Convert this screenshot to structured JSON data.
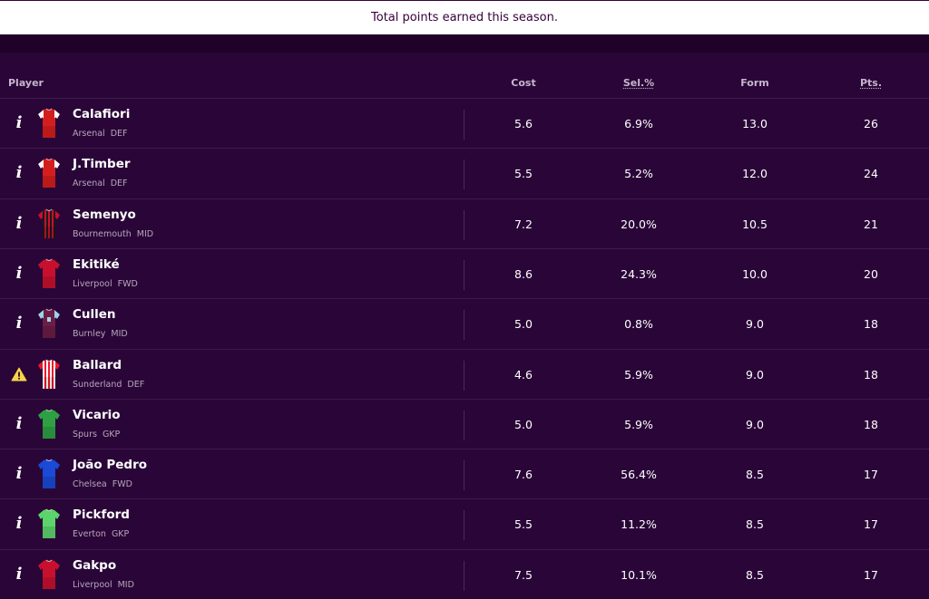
{
  "tooltip": {
    "text": "Total points earned this season."
  },
  "columns": {
    "player": "Player",
    "cost": "Cost",
    "sel": "Sel.%",
    "form": "Form",
    "pts": "Pts."
  },
  "rows": [
    {
      "name": "Calafiori",
      "team": "Arsenal",
      "position": "DEF",
      "cost": "5.6",
      "sel": "6.9%",
      "form": "13.0",
      "pts": "26",
      "status": "info",
      "kit": {
        "type": "arsenal",
        "primary": "#d41e1e",
        "sleeve": "#ffffff"
      }
    },
    {
      "name": "J.Timber",
      "team": "Arsenal",
      "position": "DEF",
      "cost": "5.5",
      "sel": "5.2%",
      "form": "12.0",
      "pts": "24",
      "status": "info",
      "kit": {
        "type": "arsenal",
        "primary": "#d41e1e",
        "sleeve": "#ffffff"
      }
    },
    {
      "name": "Semenyo",
      "team": "Bournemouth",
      "position": "MID",
      "cost": "7.2",
      "sel": "20.0%",
      "form": "10.5",
      "pts": "21",
      "status": "info",
      "kit": {
        "type": "stripes",
        "primary": "#c8102e",
        "stripe": "#1a1a1a"
      }
    },
    {
      "name": "Ekitiké",
      "team": "Liverpool",
      "position": "FWD",
      "cost": "8.6",
      "sel": "24.3%",
      "form": "10.0",
      "pts": "20",
      "status": "info",
      "kit": {
        "type": "plain",
        "primary": "#c8102e"
      }
    },
    {
      "name": "Cullen",
      "team": "Burnley",
      "position": "MID",
      "cost": "5.0",
      "sel": "0.8%",
      "form": "9.0",
      "pts": "18",
      "status": "info",
      "kit": {
        "type": "burnley",
        "primary": "#6c1d45",
        "sleeve": "#99d6ea"
      }
    },
    {
      "name": "Ballard",
      "team": "Sunderland",
      "position": "DEF",
      "cost": "4.6",
      "sel": "5.9%",
      "form": "9.0",
      "pts": "18",
      "status": "warning",
      "kit": {
        "type": "stripes",
        "primary": "#eb172b",
        "stripe": "#ffffff"
      }
    },
    {
      "name": "Vicario",
      "team": "Spurs",
      "position": "GKP",
      "cost": "5.0",
      "sel": "5.9%",
      "form": "9.0",
      "pts": "18",
      "status": "info",
      "kit": {
        "type": "plain",
        "primary": "#2ea043"
      }
    },
    {
      "name": "João Pedro",
      "team": "Chelsea",
      "position": "FWD",
      "cost": "7.6",
      "sel": "56.4%",
      "form": "8.5",
      "pts": "17",
      "status": "info",
      "kit": {
        "type": "plain",
        "primary": "#1a4ad6"
      }
    },
    {
      "name": "Pickford",
      "team": "Everton",
      "position": "GKP",
      "cost": "5.5",
      "sel": "11.2%",
      "form": "8.5",
      "pts": "17",
      "status": "info",
      "kit": {
        "type": "plain",
        "primary": "#5dd36b"
      }
    },
    {
      "name": "Gakpo",
      "team": "Liverpool",
      "position": "MID",
      "cost": "7.5",
      "sel": "10.1%",
      "form": "8.5",
      "pts": "17",
      "status": "info",
      "kit": {
        "type": "plain",
        "primary": "#c8102e"
      }
    }
  ]
}
